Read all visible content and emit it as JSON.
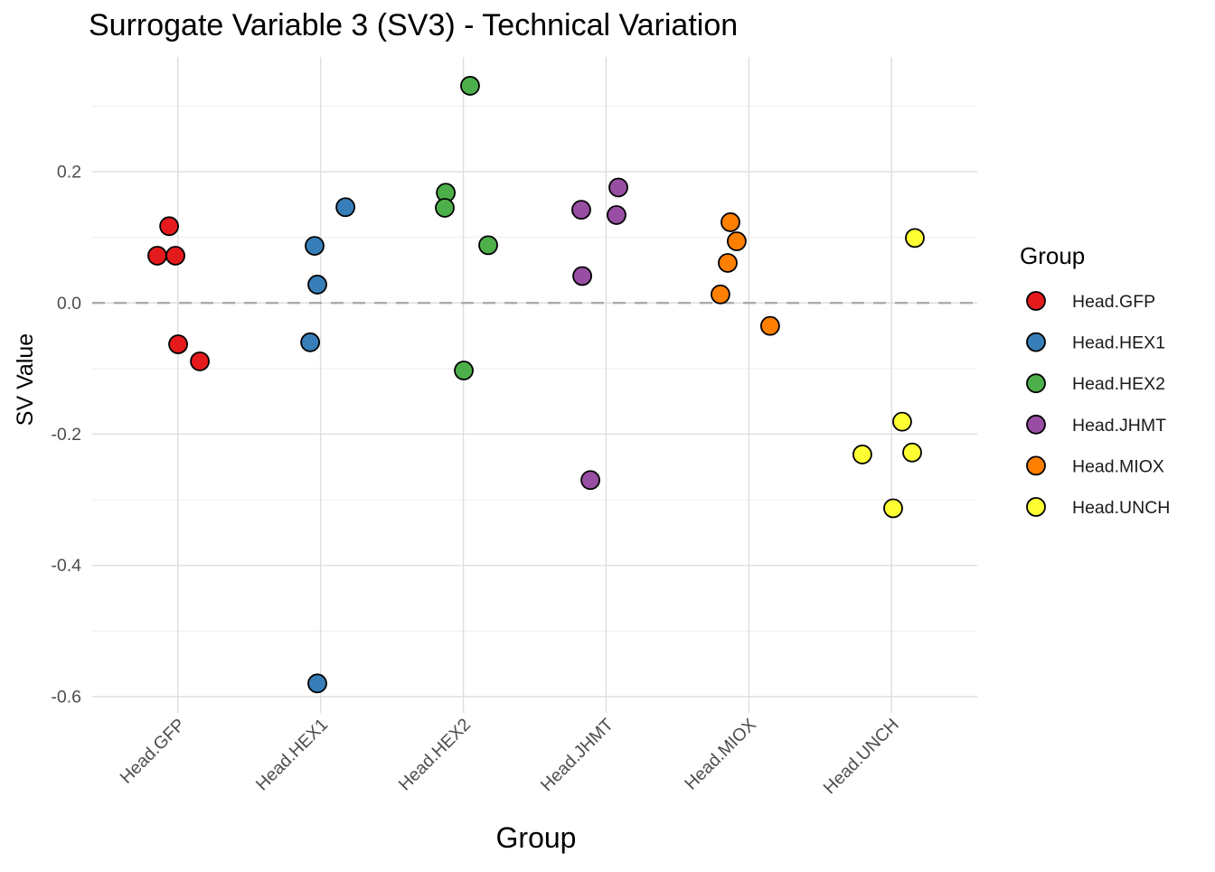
{
  "chart_data": {
    "type": "scatter",
    "title": "Surrogate Variable 3 (SV3) - Technical Variation",
    "xlabel": "Group",
    "ylabel": "SV Value",
    "categories": [
      "Head.GFP",
      "Head.HEX1",
      "Head.HEX2",
      "Head.JHMT",
      "Head.MIOX",
      "Head.UNCH"
    ],
    "ylim": [
      -0.625,
      0.375
    ],
    "x_padding_categories": 0.6,
    "grid": true,
    "reference_line": {
      "y": 0.0,
      "style": "dashed",
      "color": "#a6a6a6"
    },
    "y_axis": {
      "major_ticks": [
        {
          "label": "0.2",
          "value": 0.2
        },
        {
          "label": "0.0",
          "value": 0.0
        },
        {
          "label": "-0.2",
          "value": -0.2
        },
        {
          "label": "-0.4",
          "value": -0.4
        },
        {
          "label": "-0.6",
          "value": -0.6
        }
      ],
      "minor_ticks": [
        0.3,
        0.1,
        -0.1,
        -0.3,
        -0.5
      ]
    },
    "legend": {
      "title": "Group",
      "position": "right"
    },
    "series": [
      {
        "name": "Head.GFP",
        "color": "#E41A1C",
        "points": [
          {
            "dx": -0.061,
            "y": 0.117
          },
          {
            "dx": -0.144,
            "y": 0.072
          },
          {
            "dx": -0.017,
            "y": 0.072
          },
          {
            "dx": 0.002,
            "y": -0.063
          },
          {
            "dx": 0.154,
            "y": -0.089
          }
        ]
      },
      {
        "name": "Head.HEX1",
        "color": "#377EB8",
        "points": [
          {
            "dx": 0.174,
            "y": 0.146
          },
          {
            "dx": -0.042,
            "y": 0.087
          },
          {
            "dx": -0.023,
            "y": 0.028
          },
          {
            "dx": -0.073,
            "y": -0.06
          },
          {
            "dx": -0.023,
            "y": -0.58
          }
        ]
      },
      {
        "name": "Head.HEX2",
        "color": "#4DAF4A",
        "points": [
          {
            "dx": 0.047,
            "y": 0.331
          },
          {
            "dx": -0.123,
            "y": 0.168
          },
          {
            "dx": -0.13,
            "y": 0.145
          },
          {
            "dx": 0.174,
            "y": 0.088
          },
          {
            "dx": 0.003,
            "y": -0.103
          }
        ]
      },
      {
        "name": "Head.JHMT",
        "color": "#984EA3",
        "points": [
          {
            "dx": 0.086,
            "y": 0.176
          },
          {
            "dx": -0.174,
            "y": 0.142
          },
          {
            "dx": 0.073,
            "y": 0.134
          },
          {
            "dx": -0.167,
            "y": 0.041
          },
          {
            "dx": -0.11,
            "y": -0.27
          }
        ]
      },
      {
        "name": "Head.MIOX",
        "color": "#FF7F00",
        "points": [
          {
            "dx": -0.129,
            "y": 0.123
          },
          {
            "dx": -0.085,
            "y": 0.094
          },
          {
            "dx": -0.148,
            "y": 0.061
          },
          {
            "dx": -0.199,
            "y": 0.013
          },
          {
            "dx": 0.149,
            "y": -0.035
          }
        ]
      },
      {
        "name": "Head.UNCH",
        "color": "#FFFF33",
        "points": [
          {
            "dx": 0.163,
            "y": 0.099
          },
          {
            "dx": 0.074,
            "y": -0.181
          },
          {
            "dx": -0.205,
            "y": -0.231
          },
          {
            "dx": 0.144,
            "y": -0.228
          },
          {
            "dx": 0.011,
            "y": -0.313
          }
        ]
      }
    ],
    "style_colors": {
      "grid_major": "#dedede",
      "grid_minor": "#ececec",
      "reference_line": "#a6a6a6",
      "tick_text": "#4d4d4d",
      "title_text": "#000000",
      "point_stroke": "#000000",
      "background": "#ffffff"
    }
  }
}
